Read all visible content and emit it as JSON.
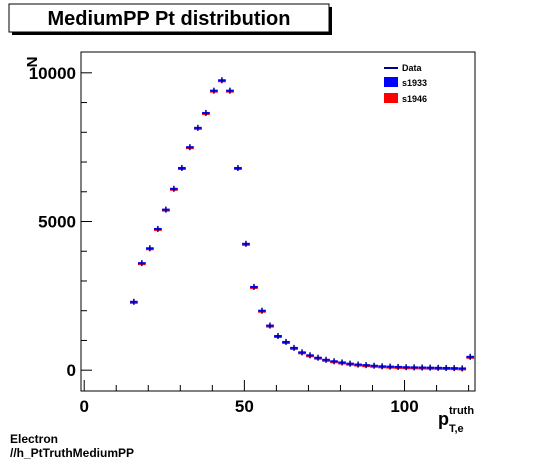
{
  "chart_data": {
    "type": "scatter",
    "title": "MediumPP Pt distribution",
    "ylabel": "N",
    "xlabel_main": "p",
    "xlabel_sup": "truth",
    "xlabel_sub": "T,e",
    "xlim": [
      -1,
      122
    ],
    "ylim": [
      -700,
      10700
    ],
    "x_ticks": [
      0,
      50,
      100
    ],
    "y_ticks": [
      0,
      5000,
      10000
    ],
    "grid": false,
    "legend_position": "top-right",
    "legend": [
      {
        "label": "Data",
        "style": "line",
        "color": "#00008b"
      },
      {
        "label": "s1933",
        "style": "box",
        "color": "#0000ff"
      },
      {
        "label": "s1946",
        "style": "box",
        "color": "#ff0000"
      }
    ],
    "series": [
      {
        "name": "Data",
        "bin_half_width": 1.2,
        "x": [
          15.5,
          18,
          20.5,
          23,
          25.5,
          28,
          30.5,
          33,
          35.5,
          38,
          40.5,
          43,
          45.5,
          48,
          50.5,
          53,
          55.5,
          58,
          60.5,
          63,
          65.5,
          68,
          70.5,
          73,
          75.5,
          78,
          80.5,
          83,
          85.5,
          88,
          90.5,
          93,
          95.5,
          98,
          100.5,
          103,
          105.5,
          108,
          110.5,
          113,
          115.5,
          118,
          120.5
        ],
        "y": [
          2300,
          3600,
          4100,
          4750,
          5400,
          6100,
          6800,
          7500,
          8150,
          8650,
          9400,
          9750,
          9400,
          6800,
          4250,
          2800,
          2000,
          1500,
          1150,
          950,
          750,
          600,
          500,
          420,
          350,
          300,
          260,
          220,
          190,
          170,
          150,
          130,
          120,
          110,
          100,
          95,
          90,
          85,
          80,
          75,
          70,
          60,
          450
        ]
      }
    ]
  },
  "footer": {
    "line1": "Electron",
    "line2": "//h_PtTruthMediumPP"
  }
}
